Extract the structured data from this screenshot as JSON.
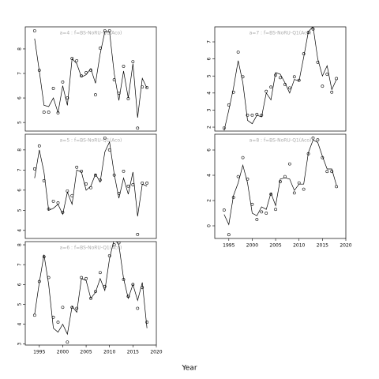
{
  "xlabel": "Year",
  "chart_data": [
    {
      "type": "line",
      "title": "a=4 : f=BS-NoRU-Q1(Aco)",
      "x": [
        1994,
        1995,
        1996,
        1997,
        1998,
        1999,
        2000,
        2001,
        2002,
        2003,
        2004,
        2005,
        2006,
        2007,
        2008,
        2009,
        2010,
        2011,
        2012,
        2013,
        2014,
        2015,
        2016,
        2017,
        2018
      ],
      "observed": [
        8.74,
        7.13,
        5.42,
        5.42,
        6.39,
        5.39,
        6.65,
        6.0,
        7.61,
        7.52,
        6.9,
        7.03,
        7.13,
        6.13,
        8.03,
        8.74,
        8.74,
        6.74,
        6.19,
        7.29,
        5.97,
        7.48,
        4.77,
        6.45,
        6.42
      ],
      "fitted": [
        8.42,
        7.1,
        5.7,
        5.65,
        6.0,
        5.4,
        6.5,
        5.7,
        7.6,
        7.4,
        6.85,
        6.95,
        7.2,
        6.6,
        7.8,
        8.7,
        8.7,
        7.0,
        5.9,
        7.1,
        6.0,
        7.4,
        5.2,
        6.8,
        6.4
      ],
      "xlim": [
        1992,
        2020
      ],
      "ylim": [
        4.65,
        8.9
      ],
      "yticks": [
        5,
        6,
        7,
        8
      ],
      "xaxis": false
    },
    {
      "type": "line",
      "title": "a=5 : f=BS-NoRU-Q1(Aco)",
      "x": [
        1994,
        1995,
        1996,
        1997,
        1998,
        1999,
        2000,
        2001,
        2002,
        2003,
        2004,
        2005,
        2006,
        2007,
        2008,
        2009,
        2010,
        2011,
        2012,
        2013,
        2014,
        2015,
        2016,
        2017,
        2018
      ],
      "observed": [
        7.06,
        8.2,
        6.47,
        5.06,
        5.45,
        5.37,
        4.9,
        5.96,
        5.73,
        7.14,
        6.94,
        6.31,
        6.12,
        6.75,
        6.51,
        8.59,
        8.0,
        6.75,
        5.84,
        6.94,
        6.2,
        6.27,
        3.8,
        6.35,
        6.35
      ],
      "fitted": [
        6.6,
        8.0,
        6.9,
        5.0,
        5.1,
        5.3,
        4.8,
        5.9,
        5.3,
        7.0,
        6.9,
        6.0,
        6.2,
        6.8,
        6.4,
        7.9,
        8.4,
        6.8,
        5.6,
        6.6,
        5.8,
        6.9,
        4.7,
        6.3,
        6.2
      ],
      "xlim": [
        1992,
        2020
      ],
      "ylim": [
        3.6,
        8.78
      ],
      "yticks": [
        4,
        5,
        6,
        7,
        8
      ],
      "xaxis": false
    },
    {
      "type": "line",
      "title": "a=6 : f=BS-NoRU-Q1(Aco)",
      "x": [
        1994,
        1995,
        1996,
        1997,
        1998,
        1999,
        2000,
        2001,
        2002,
        2003,
        2004,
        2005,
        2006,
        2007,
        2008,
        2009,
        2010,
        2011,
        2012,
        2013,
        2014,
        2015,
        2016,
        2017,
        2018
      ],
      "observed": [
        4.45,
        6.15,
        7.4,
        6.35,
        4.35,
        4.1,
        4.85,
        3.1,
        4.85,
        4.8,
        6.35,
        6.3,
        5.3,
        5.65,
        6.6,
        5.9,
        7.45,
        8.0,
        8.1,
        6.25,
        5.4,
        6.0,
        4.8,
        5.85,
        4.1
      ],
      "fitted": [
        4.5,
        6.1,
        7.5,
        6.0,
        3.8,
        3.6,
        4.0,
        3.5,
        4.9,
        4.6,
        6.3,
        6.2,
        5.3,
        5.6,
        6.3,
        5.7,
        7.3,
        8.3,
        8.0,
        6.3,
        5.3,
        6.0,
        5.2,
        6.1,
        3.8
      ],
      "xlim": [
        1992,
        2020
      ],
      "ylim": [
        2.95,
        8.16
      ],
      "yticks": [
        3,
        4,
        5,
        6,
        7,
        8
      ],
      "xticks": [
        1995,
        2000,
        2005,
        2010,
        2015,
        2020
      ],
      "xaxis": true
    },
    {
      "type": "line",
      "title": "a=7 : f=BS-NoRU-Q1(Aco)",
      "x": [
        1994,
        1995,
        1996,
        1997,
        1998,
        1999,
        2000,
        2001,
        2002,
        2003,
        2004,
        2005,
        2006,
        2007,
        2008,
        2009,
        2010,
        2011,
        2012,
        2013,
        2014,
        2015,
        2016,
        2017,
        2018
      ],
      "observed": [
        1.95,
        3.3,
        4.05,
        6.4,
        4.95,
        2.7,
        2.7,
        2.75,
        2.7,
        4.1,
        4.35,
        5.05,
        4.9,
        4.5,
        4.3,
        4.95,
        4.75,
        6.3,
        7.55,
        7.75,
        5.8,
        4.4,
        5.1,
        4.05,
        4.85
      ],
      "fitted": [
        1.8,
        3.0,
        4.3,
        5.9,
        4.6,
        2.4,
        2.2,
        2.7,
        2.6,
        4.0,
        3.6,
        5.2,
        5.1,
        4.6,
        4.0,
        4.8,
        4.7,
        6.1,
        7.6,
        7.9,
        6.0,
        5.0,
        5.6,
        4.2,
        4.8
      ],
      "xlim": [
        1992,
        2020
      ],
      "ylim": [
        1.77,
        7.88
      ],
      "yticks": [
        2,
        3,
        4,
        5,
        6,
        7
      ],
      "xaxis": false
    },
    {
      "type": "line",
      "title": "a=8 : f=BS-NoRU-Q1(Aco)",
      "x": [
        1994,
        1995,
        1996,
        1997,
        1998,
        1999,
        2000,
        2001,
        2002,
        2003,
        2004,
        2005,
        2006,
        2007,
        2008,
        2009,
        2010,
        2011,
        2012,
        2013,
        2014,
        2015,
        2016,
        2017,
        2018
      ],
      "observed": [
        1.25,
        -0.7,
        2.25,
        3.9,
        5.4,
        3.7,
        1.7,
        0.5,
        1.1,
        1.0,
        2.5,
        1.3,
        3.5,
        3.9,
        4.9,
        2.6,
        3.4,
        2.9,
        5.7,
        6.95,
        6.8,
        5.4,
        4.3,
        4.3,
        3.1
      ],
      "fitted": [
        0.9,
        0.1,
        2.4,
        3.4,
        4.8,
        3.4,
        1.0,
        0.8,
        1.5,
        1.3,
        2.6,
        1.6,
        3.7,
        3.8,
        3.7,
        2.8,
        3.3,
        3.3,
        5.8,
        6.8,
        6.6,
        5.5,
        4.5,
        4.5,
        3.2
      ],
      "xlim": [
        1992,
        2020
      ],
      "ylim": [
        -1.0,
        7.25
      ],
      "yticks": [
        0,
        2,
        4,
        6
      ],
      "xticks": [
        1995,
        2000,
        2005,
        2010,
        2015,
        2020
      ],
      "xaxis": true
    }
  ]
}
